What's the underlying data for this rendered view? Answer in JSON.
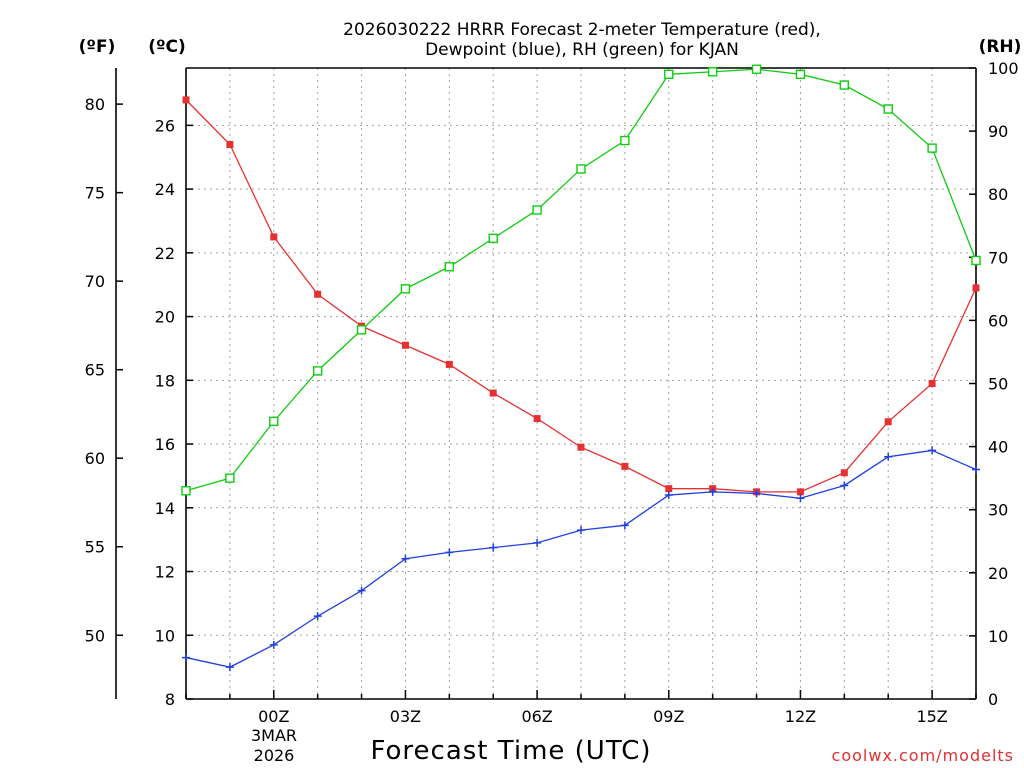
{
  "chart_data": {
    "type": "line",
    "title_line1": "2026030222 HRRR Forecast 2-meter Temperature (red),",
    "title_line2": "Dewpoint (blue), RH (green) for KJAN",
    "xlabel": "Forecast Time (UTC)",
    "credit": "coolwx.com/modelts",
    "units": {
      "fahrenheit": "(ºF)",
      "celsius": "(ºC)",
      "rh": "(RH)"
    },
    "x_hours": [
      -2,
      -1,
      0,
      1,
      2,
      3,
      4,
      5,
      6,
      7,
      8,
      9,
      10,
      11,
      12,
      13,
      14,
      15,
      16
    ],
    "x_ticks": [
      {
        "hour": 0,
        "label": "00Z"
      },
      {
        "hour": 3,
        "label": "03Z"
      },
      {
        "hour": 6,
        "label": "06Z"
      },
      {
        "hour": 9,
        "label": "09Z"
      },
      {
        "hour": 12,
        "label": "12Z"
      },
      {
        "hour": 15,
        "label": "15Z"
      }
    ],
    "date_label_line1": "3MAR",
    "date_label_line2": "2026",
    "xlim": [
      -2,
      16
    ],
    "celsius_ylim": [
      8,
      27.8
    ],
    "celsius_ticks": [
      8,
      10,
      12,
      14,
      16,
      18,
      20,
      22,
      24,
      26
    ],
    "fahrenheit_ticks": [
      50,
      55,
      60,
      65,
      70,
      75,
      80
    ],
    "rh_ylim": [
      0,
      100
    ],
    "rh_ticks": [
      0,
      10,
      20,
      30,
      40,
      50,
      60,
      70,
      80,
      90,
      100
    ],
    "series": [
      {
        "name": "Temperature",
        "unit": "C",
        "color": "#e83030",
        "marker": "filled-square",
        "values": [
          26.8,
          25.4,
          22.5,
          20.7,
          19.7,
          19.1,
          18.5,
          17.6,
          16.8,
          15.9,
          15.3,
          14.6,
          14.6,
          14.5,
          14.5,
          15.1,
          16.7,
          17.9,
          20.9
        ]
      },
      {
        "name": "Dewpoint",
        "unit": "C",
        "color": "#2040e0",
        "marker": "plus",
        "values": [
          9.3,
          9.0,
          9.7,
          10.6,
          11.4,
          12.4,
          12.6,
          12.75,
          12.9,
          13.3,
          13.45,
          14.4,
          14.5,
          14.45,
          14.3,
          14.7,
          15.6,
          15.8,
          15.2
        ]
      },
      {
        "name": "RH",
        "unit": "%",
        "color": "#10cc10",
        "marker": "open-square",
        "values": [
          33,
          35,
          44,
          52,
          58.5,
          65,
          68.5,
          73,
          77.5,
          84,
          88.5,
          99,
          99.4,
          99.8,
          99,
          97.3,
          93.5,
          87.3,
          69.5
        ]
      }
    ]
  }
}
